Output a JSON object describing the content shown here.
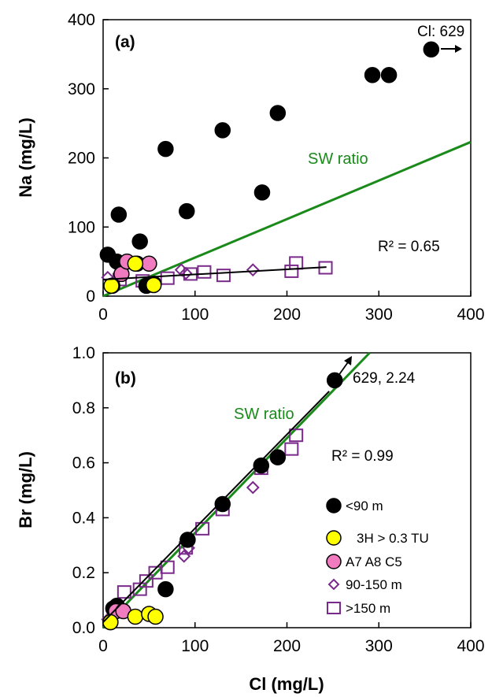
{
  "colors": {
    "lt90": "#000000",
    "tritium": "#ffff00",
    "a7a8c5": "#f07cbf",
    "mid": "#7a2a8a",
    "deep": "#7a2a8a",
    "sw": "#1a8a1a",
    "fit": "#000000"
  },
  "chart_data": [
    {
      "type": "scatter",
      "panel_label": "(a)",
      "xlabel": "",
      "ylabel": "Na (mg/L)",
      "xlim": [
        0,
        400
      ],
      "ylim": [
        0,
        400
      ],
      "xticks": [
        0,
        100,
        200,
        300,
        400
      ],
      "yticks": [
        0,
        100,
        200,
        300,
        400
      ],
      "grid": false,
      "sw_label": "SW ratio",
      "sw_line": {
        "x": [
          0,
          400
        ],
        "y": [
          0,
          223
        ]
      },
      "fit_label": "R² = 0.65",
      "fit_line": {
        "x": [
          0,
          243
        ],
        "y": [
          24,
          42
        ]
      },
      "offscale_label": "Cl: 629",
      "series": [
        {
          "name": "<90 m",
          "color_key": "lt90",
          "marker": "circle",
          "x": [
            5,
            15,
            17,
            37,
            40,
            47,
            55,
            68,
            91,
            130,
            173,
            190,
            293,
            311,
            357,
            10
          ],
          "y": [
            60,
            50,
            118,
            47,
            79,
            15,
            18,
            213,
            123,
            240,
            150,
            265,
            320,
            320,
            357,
            15
          ]
        },
        {
          "name": "3H > 0.3 TU",
          "color_key": "tritium",
          "marker": "circle",
          "x": [
            9,
            35,
            55
          ],
          "y": [
            15,
            47,
            16
          ]
        },
        {
          "name": "A7 A8 C5",
          "color_key": "a7a8c5",
          "marker": "circle",
          "x": [
            20,
            26,
            50
          ],
          "y": [
            32,
            50,
            47
          ]
        },
        {
          "name": "90-150 m",
          "color_key": "mid",
          "marker": "diamond",
          "x": [
            5,
            14,
            85,
            90,
            163
          ],
          "y": [
            27,
            24,
            38,
            33,
            38
          ]
        },
        {
          "name": ">150 m",
          "color_key": "deep",
          "marker": "square",
          "x": [
            18,
            43,
            70,
            95,
            110,
            131,
            205,
            210,
            242
          ],
          "y": [
            24,
            22,
            26,
            32,
            35,
            30,
            36,
            48,
            41
          ]
        }
      ]
    },
    {
      "type": "scatter",
      "panel_label": "(b)",
      "xlabel": "Cl (mg/L)",
      "ylabel": "Br (mg/L)",
      "xlim": [
        0,
        400
      ],
      "ylim": [
        0,
        1.0
      ],
      "xticks": [
        0,
        100,
        200,
        300,
        400
      ],
      "yticks": [
        0.0,
        0.2,
        0.4,
        0.6,
        0.8,
        1.0
      ],
      "grid": false,
      "sw_label": "SW ratio",
      "sw_line": {
        "x": [
          0,
          290
        ],
        "y": [
          0,
          1.0
        ]
      },
      "fit_label": "R² = 0.99",
      "fit_line": {
        "x": [
          0,
          246
        ],
        "y": [
          0.02,
          0.86
        ]
      },
      "offscale_label": "629, 2.24",
      "legend_position": "bottom-right",
      "series": [
        {
          "name": "<90 m",
          "color_key": "lt90",
          "marker": "circle",
          "x": [
            8,
            11,
            15,
            68,
            92,
            130,
            172,
            190,
            252
          ],
          "y": [
            0.02,
            0.07,
            0.08,
            0.14,
            0.32,
            0.45,
            0.59,
            0.62,
            0.9
          ]
        },
        {
          "name": "3H > 0.3 TU",
          "color_key": "tritium",
          "marker": "circle",
          "x": [
            8,
            35,
            50,
            57
          ],
          "y": [
            0.02,
            0.04,
            0.05,
            0.04
          ]
        },
        {
          "name": "A7 A8 C5",
          "color_key": "a7a8c5",
          "marker": "circle",
          "x": [
            14,
            22
          ],
          "y": [
            0.06,
            0.06
          ]
        },
        {
          "name": "90-150 m",
          "color_key": "mid",
          "marker": "diamond",
          "x": [
            5,
            12,
            20,
            88,
            93,
            163
          ],
          "y": [
            0.03,
            0.05,
            0.07,
            0.26,
            0.29,
            0.51
          ]
        },
        {
          "name": ">150 m",
          "color_key": "deep",
          "marker": "square",
          "x": [
            23,
            40,
            47,
            57,
            70,
            90,
            108,
            130,
            172,
            205,
            210
          ],
          "y": [
            0.13,
            0.14,
            0.17,
            0.2,
            0.22,
            0.29,
            0.36,
            0.43,
            0.58,
            0.65,
            0.7
          ]
        }
      ]
    }
  ]
}
